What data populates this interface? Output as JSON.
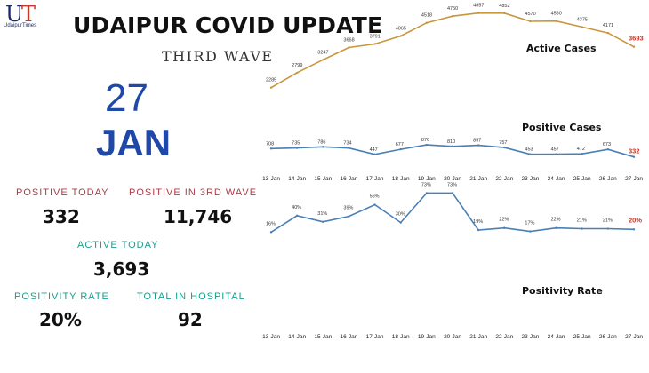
{
  "header": {
    "logo_text": "UdaipurTimes",
    "title": "UDAIPUR COVID UPDATE",
    "subtitle": "THIRD WAVE"
  },
  "date": {
    "day": "27",
    "month": "JAN"
  },
  "stats": {
    "positive_today": {
      "label": "POSITIVE TODAY",
      "value": "332"
    },
    "positive_3rd_wave": {
      "label": "POSITIVE IN 3RD WAVE",
      "value": "11,746"
    },
    "active_today": {
      "label": "ACTIVE TODAY",
      "value": "3,693"
    },
    "positivity_rate": {
      "label": "POSITIVITY RATE",
      "value": "20%"
    },
    "in_hospital": {
      "label": "TOTAL IN HOSPITAL",
      "value": "92"
    }
  },
  "colors": {
    "active_line": "#c8963c",
    "positive_line": "#4a7fb5",
    "positivity_line": "#4a7fb5",
    "highlight_label": "#c0392b",
    "date": "#1f48a8"
  },
  "chart_data": [
    {
      "type": "line",
      "title": "Active Cases",
      "x": [
        "13-Jan",
        "14-Jan",
        "15-Jan",
        "16-Jan",
        "17-Jan",
        "18-Jan",
        "19-Jan",
        "20-Jan",
        "21-Jan",
        "22-Jan",
        "23-Jan",
        "24-Jan",
        "25-Jan",
        "26-Jan",
        "27-Jan"
      ],
      "values": [
        2285,
        2799,
        3247,
        3668,
        3791,
        4065,
        4518,
        4750,
        4857,
        4852,
        4570,
        4580,
        4375,
        4171,
        3693
      ],
      "labels": [
        "2285",
        "2799",
        "3247",
        "3668",
        "3791",
        "4065",
        "4518",
        "4750",
        "4857",
        "4852",
        "4570",
        "4580",
        "4375",
        "4171",
        "3693"
      ],
      "ylim": [
        2000,
        5000
      ]
    },
    {
      "type": "line",
      "title": "Positive Cases",
      "x": [
        "13-Jan",
        "14-Jan",
        "15-Jan",
        "16-Jan",
        "17-Jan",
        "18-Jan",
        "19-Jan",
        "20-Jan",
        "21-Jan",
        "22-Jan",
        "23-Jan",
        "24-Jan",
        "25-Jan",
        "26-Jan",
        "27-Jan"
      ],
      "values": [
        708,
        735,
        786,
        734,
        447,
        677,
        876,
        810,
        857,
        757,
        453,
        457,
        472,
        673,
        332
      ],
      "labels": [
        "708",
        "735",
        "786",
        "734",
        "447",
        "677",
        "876",
        "810",
        "857",
        "757",
        "453",
        "457",
        "472",
        "673",
        "332"
      ],
      "ylim": [
        0,
        1000
      ]
    },
    {
      "type": "line",
      "title": "Positivity Rate",
      "x": [
        "13-Jan",
        "14-Jan",
        "15-Jan",
        "16-Jan",
        "17-Jan",
        "18-Jan",
        "19-Jan",
        "20-Jan",
        "21-Jan",
        "22-Jan",
        "23-Jan",
        "24-Jan",
        "25-Jan",
        "26-Jan",
        "27-Jan"
      ],
      "values": [
        16,
        40,
        31,
        39,
        56,
        30,
        73,
        73,
        19,
        22,
        17,
        22,
        21,
        21,
        20
      ],
      "labels": [
        "16%",
        "40%",
        "31%",
        "39%",
        "56%",
        "30%",
        "73%",
        "73%",
        "19%",
        "22%",
        "17%",
        "22%",
        "21%",
        "21%",
        "20%"
      ],
      "ylim": [
        10,
        80
      ]
    }
  ]
}
